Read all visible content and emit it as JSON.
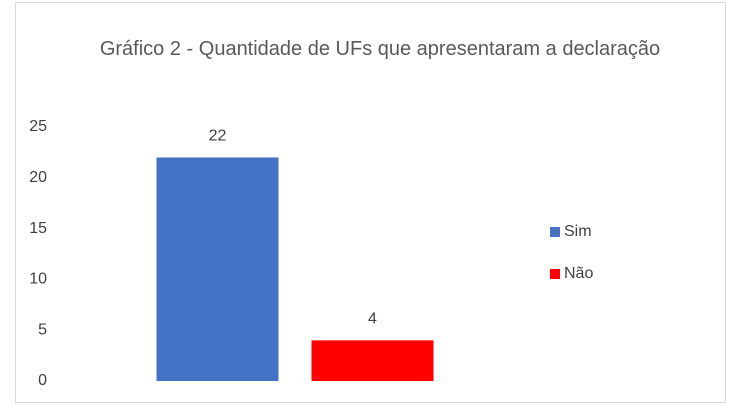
{
  "chart_data": {
    "type": "bar",
    "title": "Gráfico 2 - Quantidade de UFs que apresentaram a declaração",
    "categories": [
      null
    ],
    "series": [
      {
        "name": "Sim",
        "color": "#4472c4",
        "values": [
          22
        ]
      },
      {
        "name": "Não",
        "color": "#ff0000",
        "values": [
          4
        ]
      }
    ],
    "ylim": [
      0,
      25
    ],
    "yticks": [
      0,
      5,
      10,
      15,
      20,
      25
    ],
    "grid": false,
    "legend": "right"
  }
}
